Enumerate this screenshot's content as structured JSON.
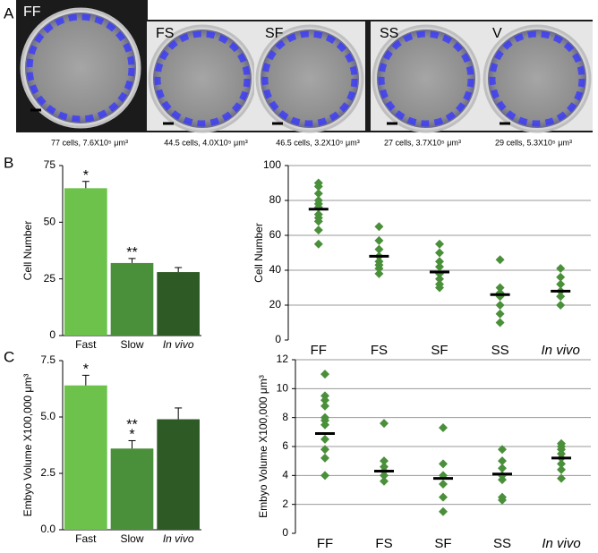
{
  "panel_labels": [
    "A",
    "B",
    "C"
  ],
  "images": [
    {
      "label": "FF",
      "caption": "77 cells, 7.6X10⁵ μm³"
    },
    {
      "label": "FS",
      "caption": "44.5 cells, 4.0X10⁵ μm³"
    },
    {
      "label": "SF",
      "caption": "46.5 cells, 3.2X10⁵ μm³"
    },
    {
      "label": "SS",
      "caption": "27 cells, 3.7X10⁵ μm³"
    },
    {
      "label": "V",
      "caption": "29 cells, 5.3X10⁵ μm³"
    }
  ],
  "chart_data": [
    {
      "type": "bar",
      "ylabel": "Cell Number",
      "categories": [
        "Fast",
        "Slow",
        "In vivo"
      ],
      "values": [
        65,
        32,
        28
      ],
      "errors": [
        3,
        2,
        2
      ],
      "colors": [
        "#6cc24a",
        "#4a8f3a",
        "#2e5a25"
      ],
      "annotations": [
        [
          "*"
        ],
        [
          "**"
        ],
        null
      ],
      "ylim": [
        0,
        75
      ],
      "yticks": [
        0,
        25,
        50,
        75
      ]
    },
    {
      "type": "strip",
      "ylabel": "Cell Number",
      "categories": [
        "FF",
        "FS",
        "SF",
        "SS",
        "In vivo"
      ],
      "values": [
        [
          90,
          88,
          84,
          80,
          78,
          76,
          72,
          70,
          68,
          63,
          55
        ],
        [
          65,
          57,
          52,
          48,
          45,
          43,
          41,
          38
        ],
        [
          55,
          50,
          45,
          42,
          38,
          35,
          32,
          30
        ],
        [
          46,
          30,
          27,
          25,
          20,
          15,
          10
        ],
        [
          41,
          36,
          32,
          28,
          25,
          20
        ]
      ],
      "means": [
        75,
        48,
        39,
        26,
        28
      ],
      "color": "#4a8f3a",
      "mean_color": "#000000",
      "ylim": [
        0,
        100
      ],
      "yticks": [
        0,
        20,
        40,
        60,
        80,
        100
      ],
      "grid": true
    },
    {
      "type": "bar",
      "ylabel": "Embyo Volume X100,000 μm³",
      "categories": [
        "Fast",
        "Slow",
        "In vivo"
      ],
      "values": [
        6.4,
        3.6,
        4.9
      ],
      "errors": [
        0.45,
        0.35,
        0.5
      ],
      "colors": [
        "#6cc24a",
        "#4a8f3a",
        "#2e5a25"
      ],
      "annotations": [
        [
          "*"
        ],
        [
          "**",
          "*"
        ],
        null
      ],
      "ylim": [
        0,
        7.5
      ],
      "yticks": [
        {
          "value": 0,
          "label": "0.0"
        },
        2.5,
        {
          "value": 5,
          "label": "5.0"
        },
        7.5
      ]
    },
    {
      "type": "strip",
      "ylabel": "Embyo Volume X100,000 μm³",
      "categories": [
        "FF",
        "FS",
        "SF",
        "SS",
        "In vivo"
      ],
      "values": [
        [
          11,
          9.5,
          9.2,
          8.8,
          8,
          7.8,
          7.5,
          6.5,
          5.8,
          5.2,
          4
        ],
        [
          7.6,
          5,
          4.6,
          4.3,
          4,
          3.6
        ],
        [
          7.3,
          4.8,
          4,
          3.4,
          2.5,
          1.5
        ],
        [
          5.8,
          5,
          4.5,
          4,
          3.7,
          2.5,
          2.3
        ],
        [
          6.2,
          6,
          5.8,
          5.5,
          5.2,
          4.8,
          4.4,
          3.8
        ]
      ],
      "means": [
        6.9,
        4.3,
        3.8,
        4.1,
        5.2
      ],
      "color": "#4a8f3a",
      "mean_color": "#000000",
      "ylim": [
        0,
        12
      ],
      "yticks": [
        0,
        2,
        4,
        6,
        8,
        10,
        12
      ],
      "grid": true
    }
  ]
}
